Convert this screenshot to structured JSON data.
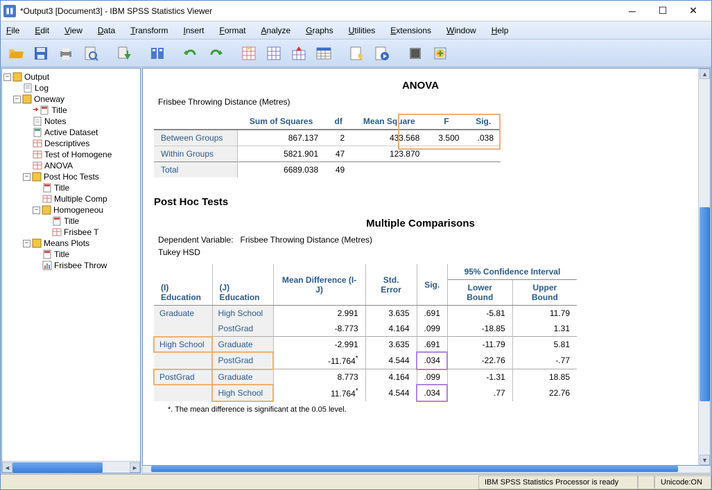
{
  "window": {
    "title": "*Output3 [Document3] - IBM SPSS Statistics Viewer",
    "menus": [
      "File",
      "Edit",
      "View",
      "Data",
      "Transform",
      "Insert",
      "Format",
      "Analyze",
      "Graphs",
      "Utilities",
      "Extensions",
      "Window",
      "Help"
    ]
  },
  "tree": {
    "root": "Output",
    "items": [
      {
        "indent": 0,
        "toggle": "-",
        "icon": "out",
        "label": "Output"
      },
      {
        "indent": 1,
        "toggle": "",
        "icon": "log",
        "label": "Log"
      },
      {
        "indent": 1,
        "toggle": "-",
        "icon": "grp",
        "label": "Oneway"
      },
      {
        "indent": 2,
        "toggle": "",
        "icon": "title",
        "label": "Title",
        "arrow": true
      },
      {
        "indent": 2,
        "toggle": "",
        "icon": "notes",
        "label": "Notes"
      },
      {
        "indent": 2,
        "toggle": "",
        "icon": "ds",
        "label": "Active Dataset"
      },
      {
        "indent": 2,
        "toggle": "",
        "icon": "tbl",
        "label": "Descriptives"
      },
      {
        "indent": 2,
        "toggle": "",
        "icon": "tbl",
        "label": "Test of Homogene"
      },
      {
        "indent": 2,
        "toggle": "",
        "icon": "tbl",
        "label": "ANOVA"
      },
      {
        "indent": 2,
        "toggle": "-",
        "icon": "grp",
        "label": "Post Hoc Tests"
      },
      {
        "indent": 3,
        "toggle": "",
        "icon": "title",
        "label": "Title"
      },
      {
        "indent": 3,
        "toggle": "",
        "icon": "tbl",
        "label": "Multiple Comp"
      },
      {
        "indent": 3,
        "toggle": "-",
        "icon": "grp",
        "label": "Homogeneou"
      },
      {
        "indent": 4,
        "toggle": "",
        "icon": "title",
        "label": "Title"
      },
      {
        "indent": 4,
        "toggle": "",
        "icon": "tbl",
        "label": "Frisbee T"
      },
      {
        "indent": 2,
        "toggle": "-",
        "icon": "grp",
        "label": "Means Plots"
      },
      {
        "indent": 3,
        "toggle": "",
        "icon": "title",
        "label": "Title"
      },
      {
        "indent": 3,
        "toggle": "",
        "icon": "chart",
        "label": "Frisbee Throw"
      }
    ]
  },
  "anova": {
    "title": "ANOVA",
    "caption": "Frisbee Throwing Distance (Metres)",
    "headers": [
      "",
      "Sum of Squares",
      "df",
      "Mean Square",
      "F",
      "Sig."
    ],
    "rows": [
      {
        "label": "Between Groups",
        "ss": "867.137",
        "df": "2",
        "ms": "433.568",
        "f": "3.500",
        "sig": ".038"
      },
      {
        "label": "Within Groups",
        "ss": "5821.901",
        "df": "47",
        "ms": "123.870",
        "f": "",
        "sig": ""
      },
      {
        "label": "Total",
        "ss": "6689.038",
        "df": "49",
        "ms": "",
        "f": "",
        "sig": ""
      }
    ]
  },
  "posthoc": {
    "title": "Post Hoc Tests",
    "subtitle": "Multiple Comparisons",
    "dvlabel": "Dependent Variable:",
    "dv": "Frisbee Throwing Distance (Metres)",
    "method": "Tukey HSD",
    "headers": {
      "i": "(I) Education",
      "j": "(J) Education",
      "md": "Mean Difference (I-J)",
      "se": "Std. Error",
      "sig": "Sig.",
      "ci": "95% Confidence Interval",
      "lb": "Lower Bound",
      "ub": "Upper Bound"
    },
    "rows": [
      {
        "i": "Graduate",
        "j": "High School",
        "md": "2.991",
        "se": "3.635",
        "sig": ".691",
        "lb": "-5.81",
        "ub": "11.79",
        "ihl": false,
        "grp": true
      },
      {
        "i": "",
        "j": "PostGrad",
        "md": "-8.773",
        "se": "4.164",
        "sig": ".099",
        "lb": "-18.85",
        "ub": "1.31",
        "ihl": false
      },
      {
        "i": "High School",
        "j": "Graduate",
        "md": "-2.991",
        "se": "3.635",
        "sig": ".691",
        "lb": "-11.79",
        "ub": "5.81",
        "ihl": true,
        "grp": true
      },
      {
        "i": "",
        "j": "PostGrad",
        "md": "-11.764",
        "star": true,
        "se": "4.544",
        "sig": ".034",
        "sighl": true,
        "lb": "-22.76",
        "ub": "-.77",
        "jhl": true
      },
      {
        "i": "PostGrad",
        "j": "Graduate",
        "md": "8.773",
        "se": "4.164",
        "sig": ".099",
        "lb": "-1.31",
        "ub": "18.85",
        "ihl": true,
        "grp": true
      },
      {
        "i": "",
        "j": "High School",
        "md": "11.764",
        "star": true,
        "se": "4.544",
        "sig": ".034",
        "sighl": true,
        "lb": ".77",
        "ub": "22.76",
        "jhl": true
      }
    ],
    "footnote": "*. The mean difference is significant at the 0.05 level."
  },
  "status": {
    "processor": "IBM SPSS Statistics Processor is ready",
    "unicode": "Unicode:ON"
  }
}
